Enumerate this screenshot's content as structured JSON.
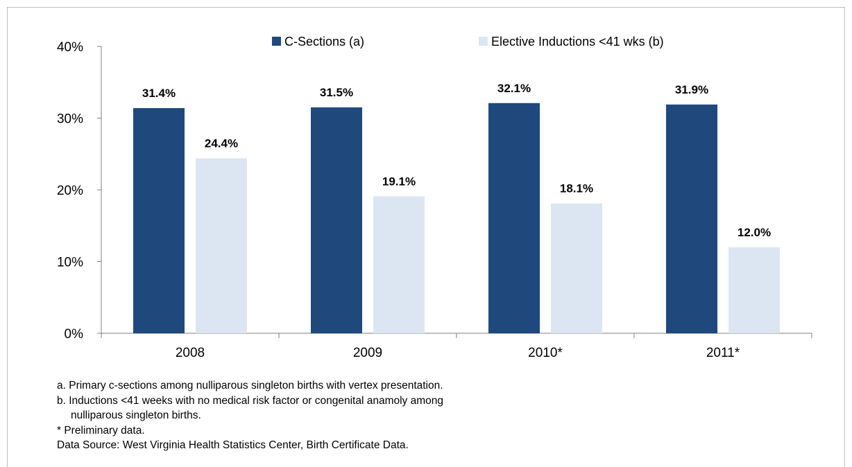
{
  "chart_data": {
    "type": "bar",
    "categories": [
      "2008",
      "2009",
      "2010*",
      "2011*"
    ],
    "series": [
      {
        "name": "C-Sections (a)",
        "values": [
          31.4,
          31.5,
          32.1,
          31.9
        ],
        "labels": [
          "31.4%",
          "31.5%",
          "32.1%",
          "31.9%"
        ],
        "color": "#1f497d"
      },
      {
        "name": "Elective Inductions <41 wks (b)",
        "values": [
          24.4,
          19.1,
          18.1,
          12.0
        ],
        "labels": [
          "24.4%",
          "19.1%",
          "18.1%",
          "12.0%"
        ],
        "color": "#dce6f2"
      }
    ],
    "y_ticks": [
      "0%",
      "10%",
      "20%",
      "30%",
      "40%"
    ],
    "ylim": [
      0,
      40
    ],
    "legend_position": "top",
    "grid": false
  },
  "notes": {
    "a": "a.  Primary c-sections among nulliparous singleton births with vertex presentation.",
    "b1": "b.  Inductions <41 weeks with no medical risk factor or congenital anamoly among",
    "b2": "nulliparous singleton births.",
    "star": "*   Preliminary data.",
    "source": "Data Source: West Virginia Health Statistics Center, Birth Certificate Data."
  }
}
